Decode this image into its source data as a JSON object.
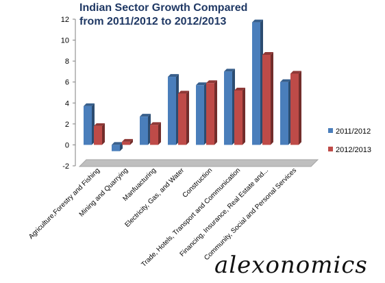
{
  "chart_data": {
    "type": "bar",
    "title_lines": [
      "Indian Sector Growth Compared",
      "from 2011/2012 to 2012/2013"
    ],
    "categories": [
      "Agriculture,Forestry and Fishing",
      "Mining and Quarrying",
      "Manfuacturing",
      "Electricity, Gas, and Water",
      "Construction",
      "Trade, Hotels, Transport and Communication",
      "Financing, Insurance, Real Estate and...",
      "Community, Social and Personal Services"
    ],
    "series": [
      {
        "name": "2011/2012",
        "color": "#4a7ebb",
        "values": [
          3.7,
          -0.6,
          2.7,
          6.5,
          5.7,
          7.0,
          11.7,
          6.0
        ]
      },
      {
        "name": "2012/2013",
        "color": "#be4b48",
        "values": [
          1.8,
          0.3,
          1.9,
          4.9,
          5.9,
          5.2,
          8.6,
          6.8
        ]
      }
    ],
    "ylim": [
      -2,
      12
    ],
    "yticks": [
      "-2",
      "0",
      "2",
      "4",
      "6",
      "8",
      "10",
      "12"
    ],
    "legend_position": "right",
    "chart_style": "3d-clustered-column",
    "grid": false
  },
  "watermark": "alexonomics"
}
